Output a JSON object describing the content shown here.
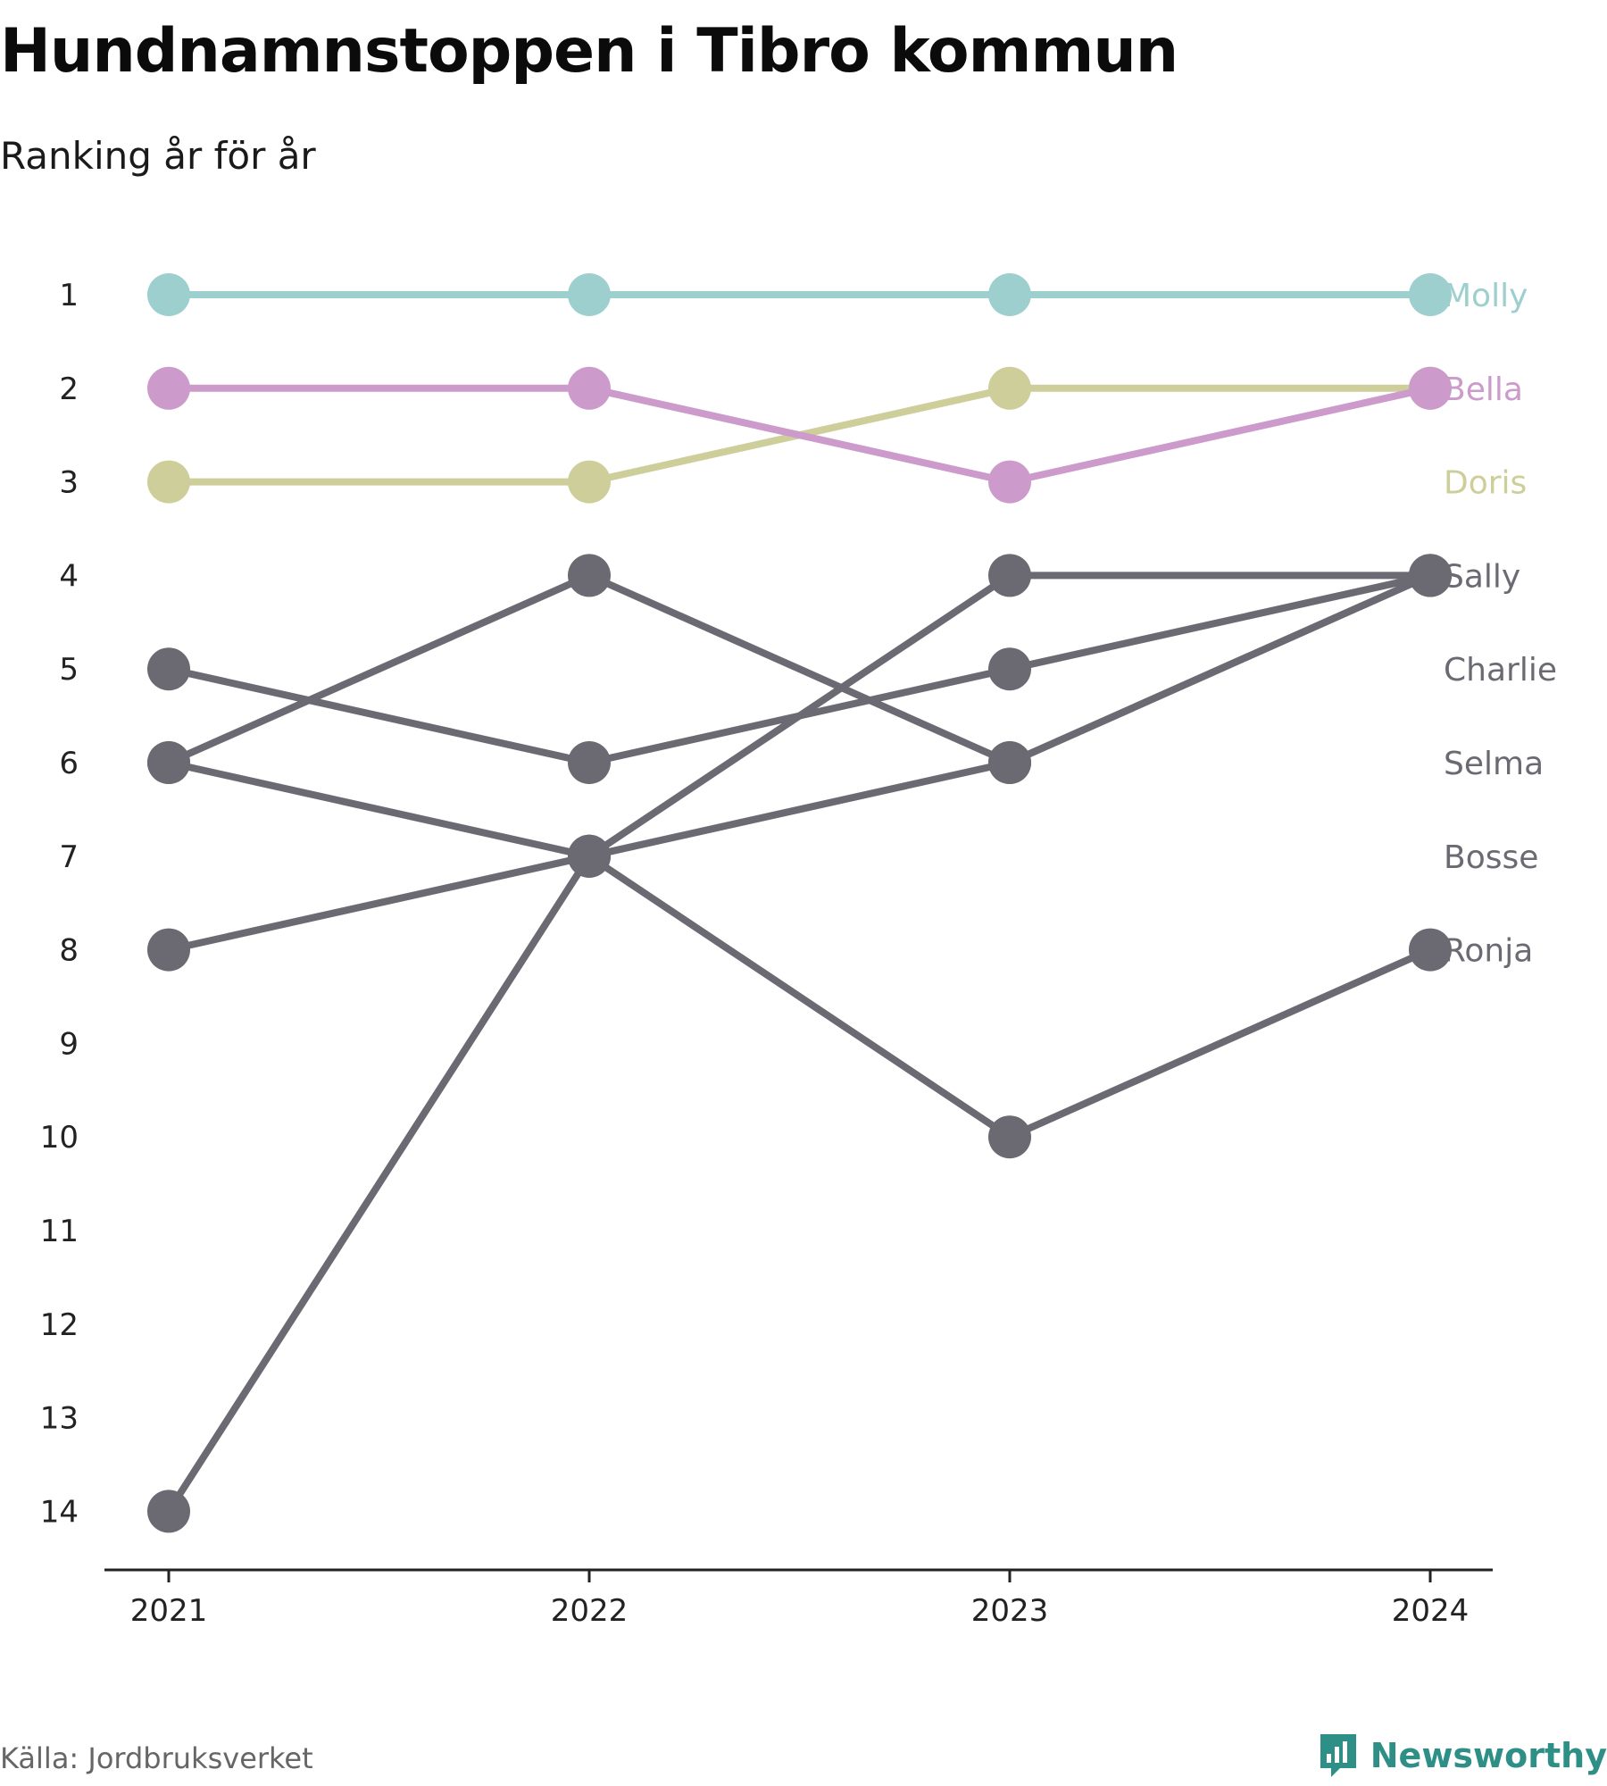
{
  "title": "Hundnamnstoppen i Tibro kommun",
  "subtitle": "Ranking år för år",
  "source": "Källa: Jordbruksverket",
  "brand": "Newsworthy",
  "colors": {
    "Molly": "#9dcfce",
    "Bella": "#cc9bcc",
    "Doris": "#cece9b",
    "other": "#6b6a72",
    "brand": "#2e8f87"
  },
  "chart_data": {
    "type": "line",
    "title": "Hundnamnstoppen i Tibro kommun",
    "subtitle": "Ranking år för år",
    "x": [
      "2021",
      "2022",
      "2023",
      "2024"
    ],
    "y_ticks": [
      "1",
      "2",
      "3",
      "4",
      "5",
      "6",
      "7",
      "8",
      "9",
      "10",
      "11",
      "12",
      "13",
      "14"
    ],
    "ylim": [
      1,
      14
    ],
    "y_reversed": true,
    "grid": false,
    "series": [
      {
        "name": "Ronja",
        "values": [
          6,
          7,
          10,
          8
        ],
        "color": "#6b6a72"
      },
      {
        "name": "Bosse",
        "values": [
          14,
          7,
          4,
          4
        ],
        "color": "#6b6a72"
      },
      {
        "name": "Selma",
        "values": [
          6,
          4,
          6,
          4
        ],
        "color": "#6b6a72"
      },
      {
        "name": "Charlie",
        "values": [
          5,
          6,
          5,
          4
        ],
        "color": "#6b6a72"
      },
      {
        "name": "Sally",
        "values": [
          8,
          7,
          6,
          4
        ],
        "color": "#6b6a72"
      },
      {
        "name": "Doris",
        "values": [
          3,
          3,
          2,
          2
        ],
        "color": "#cece9b"
      },
      {
        "name": "Bella",
        "values": [
          2,
          2,
          3,
          2
        ],
        "color": "#cc9bcc"
      },
      {
        "name": "Molly",
        "values": [
          1,
          1,
          1,
          1
        ],
        "color": "#9dcfce"
      }
    ],
    "end_labels": [
      {
        "name": "Molly",
        "rank": 1,
        "color": "#9dcfce"
      },
      {
        "name": "Bella",
        "rank": 2,
        "color": "#cc9bcc"
      },
      {
        "name": "Doris",
        "rank": 3,
        "color": "#cece9b"
      },
      {
        "name": "Sally",
        "rank": 4,
        "color": "#6b6a72"
      },
      {
        "name": "Charlie",
        "rank": 5,
        "color": "#6b6a72"
      },
      {
        "name": "Selma",
        "rank": 6,
        "color": "#6b6a72"
      },
      {
        "name": "Bosse",
        "rank": 7,
        "color": "#6b6a72"
      },
      {
        "name": "Ronja",
        "rank": 8,
        "color": "#6b6a72"
      }
    ]
  }
}
